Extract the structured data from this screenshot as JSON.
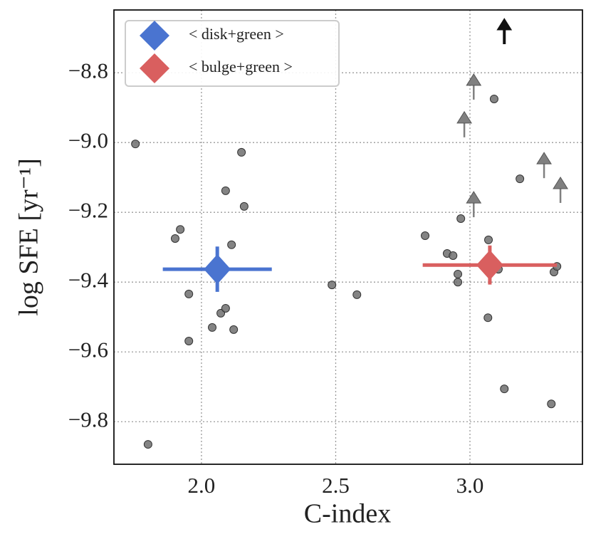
{
  "chart_data": {
    "type": "scatter",
    "xlabel": "C-index",
    "ylabel": "log SFE [yr⁻¹]",
    "xlim": [
      1.674,
      3.419
    ],
    "ylim": [
      -9.922,
      -8.62
    ],
    "xticks": [
      {
        "value": 2.0,
        "label": "2.0"
      },
      {
        "value": 2.5,
        "label": "2.5"
      },
      {
        "value": 3.0,
        "label": "3.0"
      }
    ],
    "yticks": [
      {
        "value": -8.8,
        "label": "−8.8"
      },
      {
        "value": -9.0,
        "label": "−9.0"
      },
      {
        "value": -9.2,
        "label": "−9.2"
      },
      {
        "value": -9.4,
        "label": "−9.4"
      },
      {
        "value": -9.6,
        "label": "−9.6"
      },
      {
        "value": -9.8,
        "label": "−9.8"
      }
    ],
    "grid": true,
    "legend": "upper left",
    "points": {
      "color": "#6e6e6e",
      "x": [
        1.754,
        1.801,
        1.902,
        1.921,
        1.953,
        1.953,
        2.04,
        2.072,
        2.09,
        2.09,
        2.112,
        2.12,
        2.149,
        2.159,
        2.486,
        2.579,
        2.833,
        2.915,
        2.937,
        2.955,
        2.955,
        2.966,
        3.069,
        3.106,
        3.067,
        3.09,
        3.128,
        3.186,
        3.313,
        3.324,
        3.303
      ],
      "y": [
        -9.004,
        -9.865,
        -9.275,
        -9.249,
        -9.434,
        -9.569,
        -9.53,
        -9.489,
        -9.475,
        -9.138,
        -9.293,
        -9.536,
        -9.028,
        -9.183,
        -9.408,
        -9.436,
        -9.267,
        -9.318,
        -9.324,
        -9.377,
        -9.4,
        -9.218,
        -9.279,
        -9.363,
        -9.502,
        -8.875,
        -9.706,
        -9.104,
        -9.371,
        -9.355,
        -9.749
      ]
    },
    "upper_limits": {
      "color": "#808080",
      "x": [
        3.014,
        2.979,
        3.014,
        3.276,
        3.337
      ],
      "y": [
        -8.877,
        -8.985,
        -9.214,
        -9.102,
        -9.173
      ]
    },
    "upper_limit_key": {
      "color": "#111111",
      "x": [
        3.128
      ],
      "y": [
        -8.718
      ]
    },
    "series": [
      {
        "name": "< disk+green >",
        "color": "#4a74d0",
        "x": [
          2.059
        ],
        "y": [
          -9.363
        ],
        "xerr": [
          0.203
        ],
        "yerr": [
          0.065
        ]
      },
      {
        "name": "< bulge+green >",
        "color": "#d95f5f",
        "x": [
          3.074
        ],
        "y": [
          -9.351
        ],
        "xerr": [
          0.25
        ],
        "yerr": [
          0.056
        ]
      }
    ]
  }
}
